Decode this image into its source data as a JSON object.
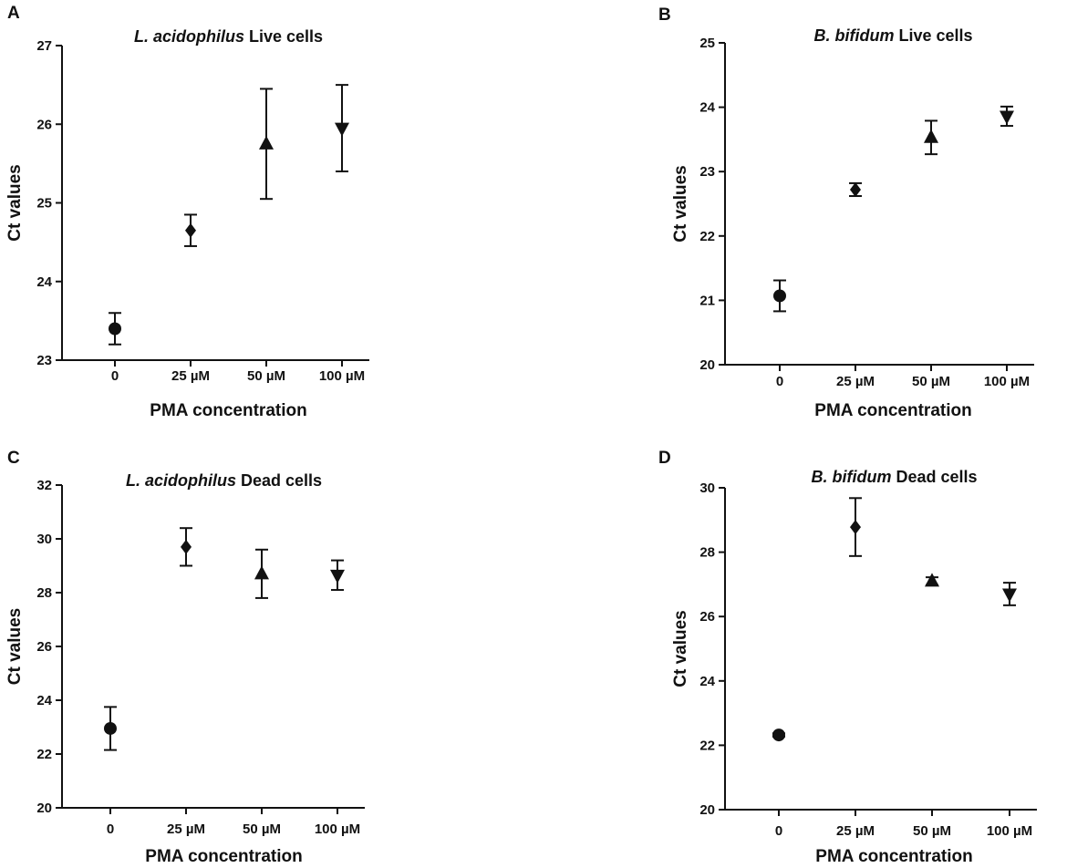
{
  "chart_data": [
    {
      "type": "scatter",
      "panel": "A",
      "title_italic": "L. acidophilus",
      "title_rest": " Live cells",
      "xlabel": "PMA concentration",
      "ylabel": "Ct values",
      "categories": [
        "0",
        "25 µM",
        "50 µM",
        "100 µM"
      ],
      "markers": [
        "circle",
        "diamond",
        "triangle-up",
        "triangle-down"
      ],
      "values": [
        23.4,
        24.65,
        25.75,
        25.95
      ],
      "errors": [
        0.2,
        0.2,
        0.7,
        0.55
      ],
      "ylim": [
        23,
        27
      ],
      "yticks": [
        23,
        24,
        25,
        26,
        27
      ],
      "grid": false
    },
    {
      "type": "scatter",
      "panel": "B",
      "title_italic": "B. bifidum",
      "title_rest": " Live cells",
      "xlabel": "PMA concentration",
      "ylabel": "Ct values",
      "categories": [
        "0",
        "25 µM",
        "50 µM",
        "100 µM"
      ],
      "markers": [
        "circle",
        "diamond",
        "triangle-up",
        "triangle-down"
      ],
      "values": [
        21.07,
        22.72,
        23.53,
        23.86
      ],
      "errors": [
        0.24,
        0.1,
        0.26,
        0.15
      ],
      "ylim": [
        20,
        25
      ],
      "yticks": [
        20,
        21,
        22,
        23,
        24,
        25
      ],
      "grid": false
    },
    {
      "type": "scatter",
      "panel": "C",
      "title_italic": "L. acidophilus",
      "title_rest": " Dead cells",
      "xlabel": "PMA concentration",
      "ylabel": "Ct values",
      "categories": [
        "0",
        "25 µM",
        "50 µM",
        "100 µM"
      ],
      "markers": [
        "circle",
        "diamond",
        "triangle-up",
        "triangle-down"
      ],
      "values": [
        22.95,
        29.7,
        28.7,
        28.65
      ],
      "errors": [
        0.8,
        0.7,
        0.9,
        0.55
      ],
      "ylim": [
        20,
        32
      ],
      "yticks": [
        20,
        22,
        24,
        26,
        28,
        30,
        32
      ],
      "grid": false
    },
    {
      "type": "scatter",
      "panel": "D",
      "title_italic": "B. bifidum",
      "title_rest": " Dead cells",
      "xlabel": "PMA concentration",
      "ylabel": "Ct values",
      "categories": [
        "0",
        "25 µM",
        "50 µM",
        "100 µM"
      ],
      "markers": [
        "circle",
        "diamond",
        "triangle-up",
        "triangle-down"
      ],
      "values": [
        22.32,
        28.78,
        27.1,
        26.7
      ],
      "errors": [
        0.05,
        0.9,
        0.12,
        0.35
      ],
      "ylim": [
        20,
        30
      ],
      "yticks": [
        20,
        22,
        24,
        26,
        28,
        30
      ],
      "grid": false
    }
  ]
}
